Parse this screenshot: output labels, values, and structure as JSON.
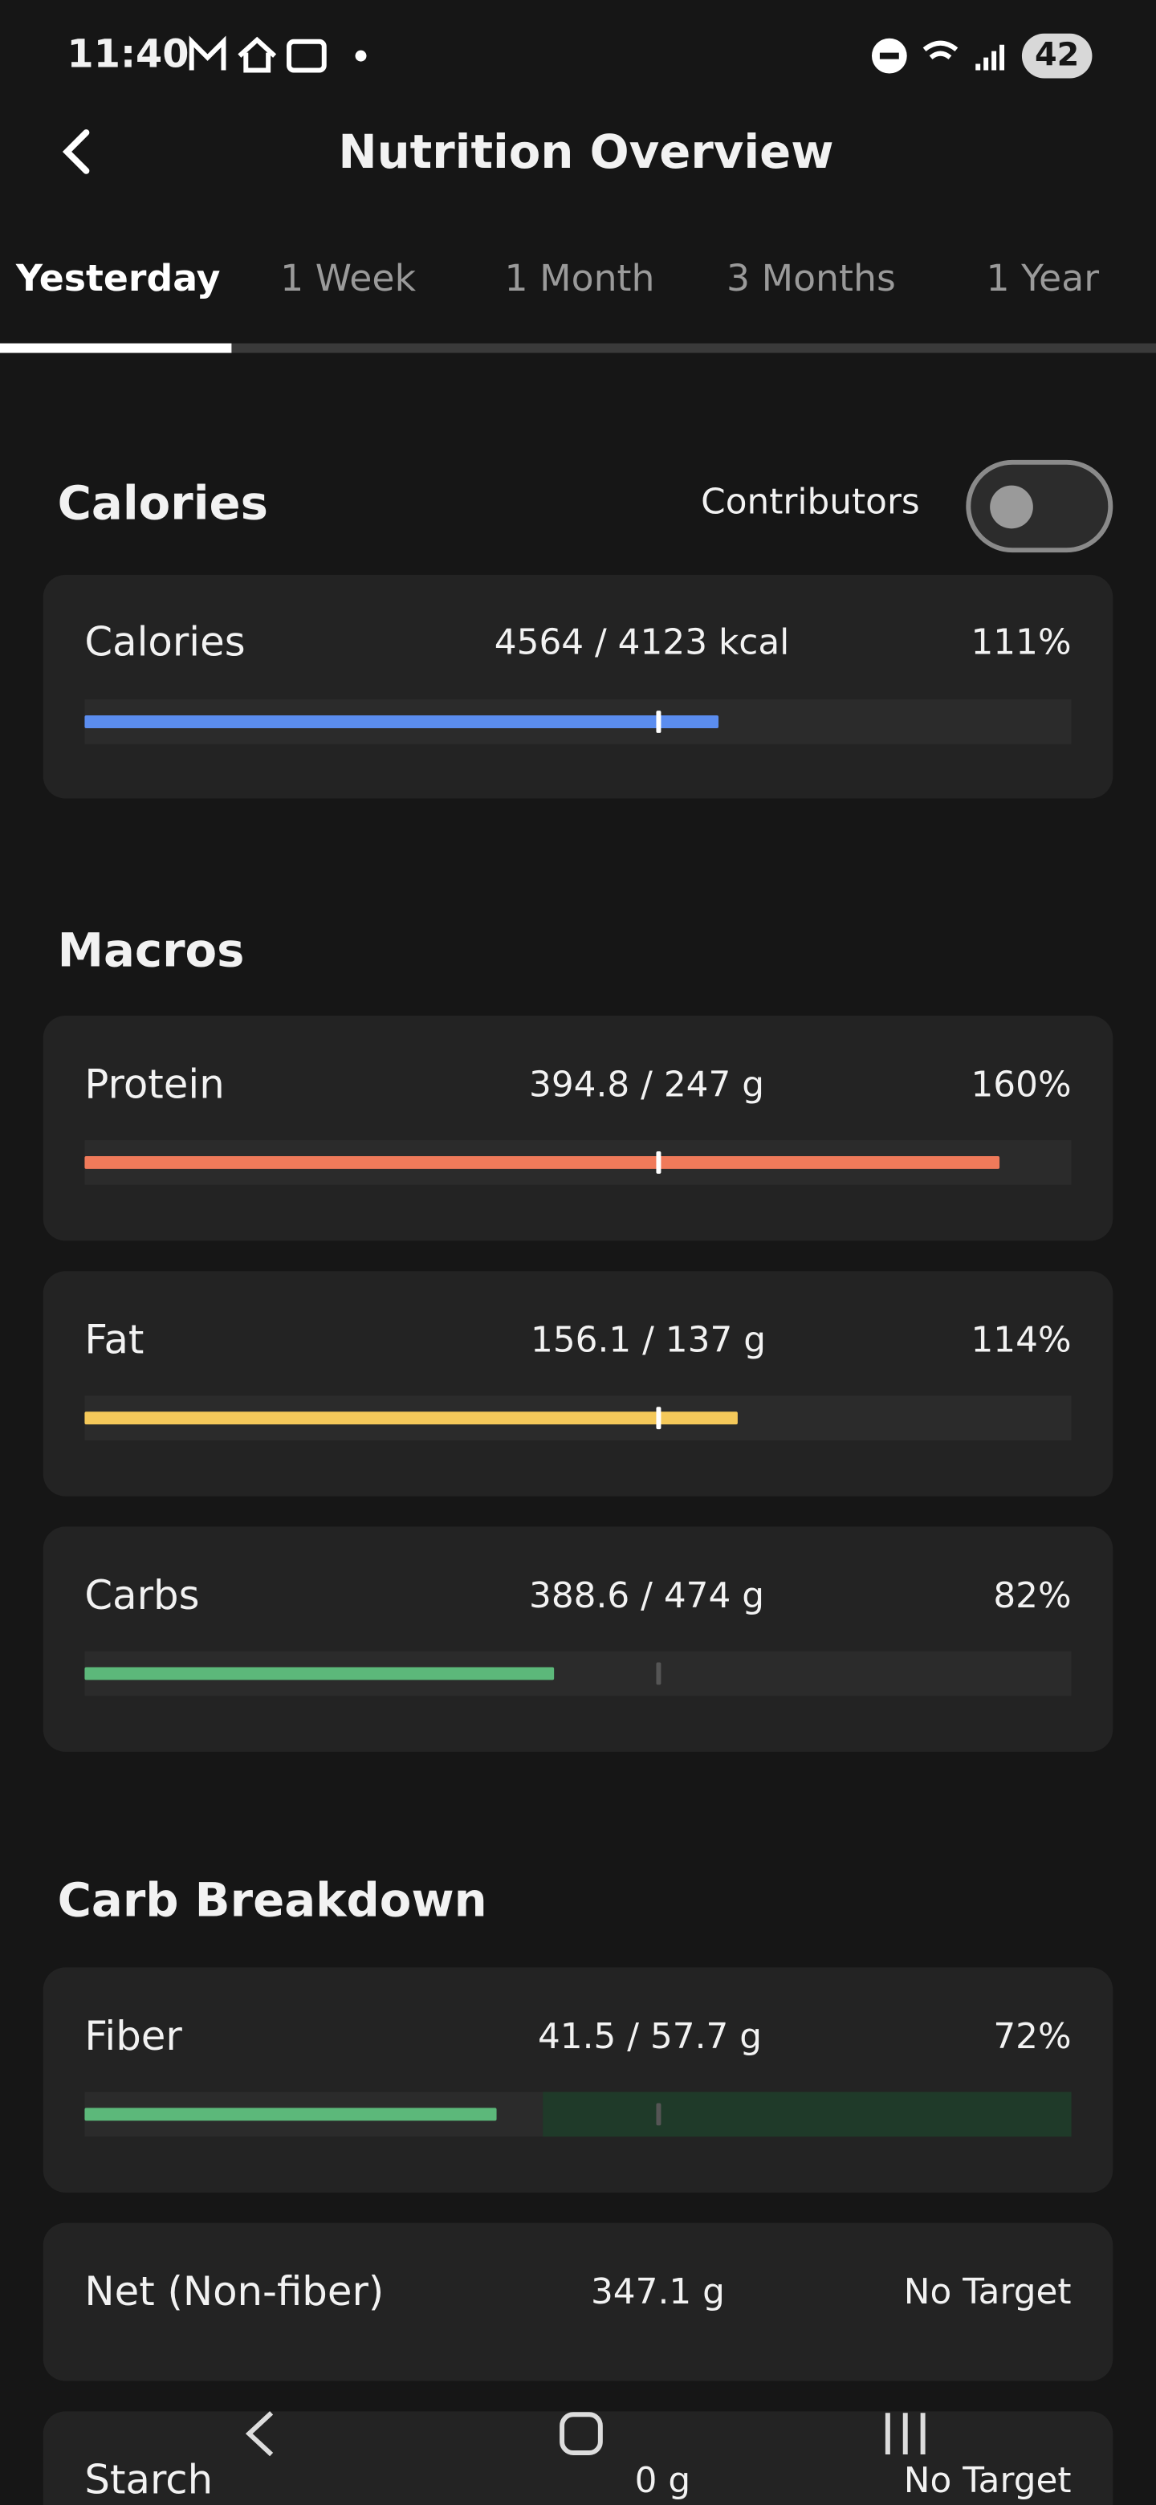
{
  "status_bar": {
    "time": "11:40",
    "battery": "42"
  },
  "header": {
    "title": "Nutrition Overview"
  },
  "tabs": [
    "Yesterday",
    "1 Week",
    "1 Month",
    "3 Months",
    "1 Year"
  ],
  "sections": [
    {
      "title": "Calories",
      "toggle_label": "Contributors",
      "items": [
        {
          "label": "Calories",
          "amount": "4564 / 4123 kcal",
          "percent": "111%"
        }
      ]
    },
    {
      "title": "Macros",
      "items": [
        {
          "label": "Protein",
          "amount": "394.8 / 247 g",
          "percent": "160%"
        },
        {
          "label": "Fat",
          "amount": "156.1 / 137 g",
          "percent": "114%"
        },
        {
          "label": "Carbs",
          "amount": "388.6 / 474 g",
          "percent": "82%"
        }
      ]
    },
    {
      "title": "Carb Breakdown",
      "items": [
        {
          "label": "Fiber",
          "amount": "41.5 / 57.7 g",
          "percent": "72%"
        },
        {
          "label": "Net (Non-fiber)",
          "amount": "347.1 g",
          "percent": "No Target"
        },
        {
          "label": "Starch",
          "amount": "0 g",
          "percent": "No Target"
        }
      ]
    }
  ]
}
